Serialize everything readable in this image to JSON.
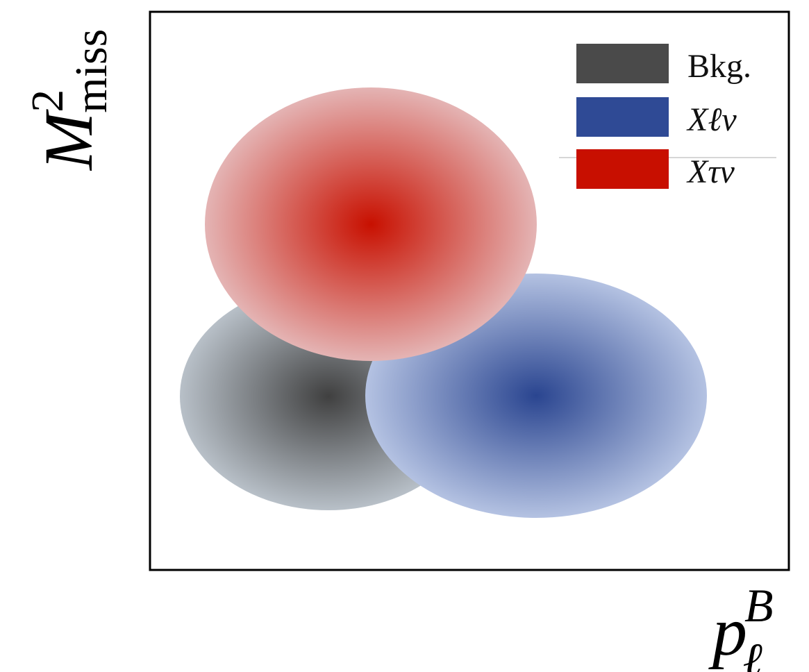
{
  "legend": {
    "items": [
      {
        "id": "bkg",
        "label": "Bkg.",
        "italic": false,
        "color": "#4a4a4a"
      },
      {
        "id": "xlnu",
        "label": "Xℓν",
        "italic": true,
        "color": "#2f4a95"
      },
      {
        "id": "xtaunu",
        "label": "Xτν",
        "italic": true,
        "color": "#c80f00"
      }
    ]
  },
  "axes": {
    "y_label": {
      "base": "M",
      "superscript": "2",
      "subscript": "miss"
    },
    "x_label": {
      "base": "p",
      "superscript": "B",
      "subscript": "ℓ"
    }
  },
  "blobs": [
    {
      "id": "bkg",
      "center_color": "#404040",
      "edge_color": "#b8c0c8"
    },
    {
      "id": "xlnu",
      "center_color": "#2a4590",
      "edge_color": "#b4c2e2"
    },
    {
      "id": "xtaunu",
      "center_color": "#c81000",
      "edge_color": "#e4b4b4"
    }
  ]
}
